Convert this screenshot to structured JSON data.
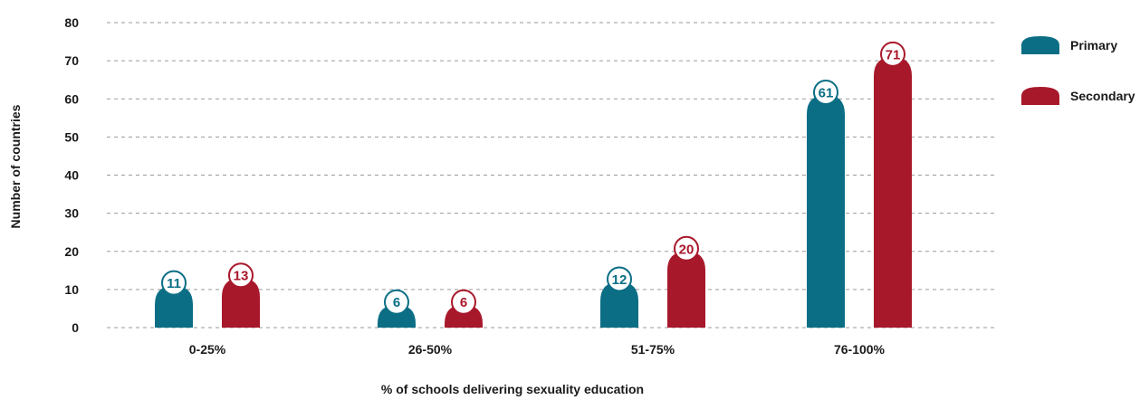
{
  "colors": {
    "primary": "#0b6e85",
    "secondary": "#a8182b",
    "grid": "#9a9a9a",
    "text": "#1a1a1a"
  },
  "chart_data": {
    "type": "bar",
    "title": "",
    "xlabel": "% of schools delivering sexuality education",
    "ylabel": "Number of countries",
    "ylim": [
      0,
      80
    ],
    "yticks": [
      0,
      10,
      20,
      30,
      40,
      50,
      60,
      70,
      80
    ],
    "categories": [
      "0-25%",
      "26-50%",
      "51-75%",
      "76-100%"
    ],
    "series": [
      {
        "name": "Primary",
        "values": [
          11,
          6,
          12,
          61
        ]
      },
      {
        "name": "Secondary",
        "values": [
          13,
          6,
          20,
          71
        ]
      }
    ],
    "grid": true,
    "legend_position": "right"
  }
}
